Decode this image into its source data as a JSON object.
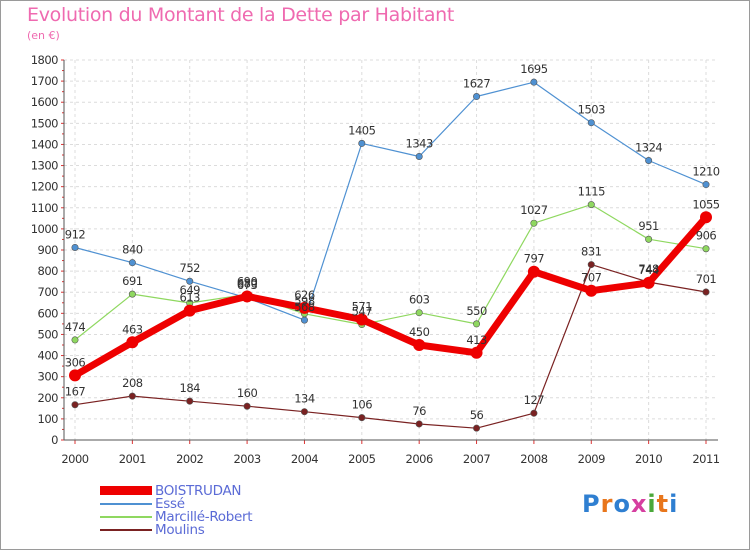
{
  "title": "Evolution du Montant de la Dette par Habitant",
  "unit": "(en €)",
  "logo": {
    "text": "Proxiti",
    "letter_colors": [
      "#2f7fd1",
      "#e8761c",
      "#2f7fd1",
      "#d63fa0",
      "#4aa83a",
      "#e8761c",
      "#2f7fd1"
    ]
  },
  "chart_data": {
    "type": "line",
    "x": [
      "2000",
      "2001",
      "2002",
      "2003",
      "2004",
      "2005",
      "2006",
      "2007",
      "2008",
      "2009",
      "2010",
      "2011"
    ],
    "ylim": [
      0,
      1800
    ],
    "yticks": [
      "0",
      "100",
      "200",
      "300",
      "400",
      "500",
      "600",
      "700",
      "800",
      "900",
      "1000",
      "1100",
      "1200",
      "1300",
      "1400",
      "1500",
      "1600",
      "1700",
      "1800"
    ],
    "grid": true,
    "legend_position": "bottom-left",
    "series": [
      {
        "name": "BOISTRUDAN",
        "color": "#ee0000",
        "values": [
          306,
          463,
          613,
          680,
          626,
          571,
          450,
          413,
          797,
          707,
          744,
          1055
        ],
        "labels": [
          "306",
          "463",
          "613",
          "680",
          "626",
          "571",
          "450",
          "413",
          "797",
          "707",
          "744",
          "1055"
        ]
      },
      {
        "name": "Essé",
        "color": "#4f91d2",
        "values": [
          912,
          840,
          752,
          673,
          568,
          1405,
          1343,
          1627,
          1695,
          1503,
          1324,
          1210
        ],
        "labels": [
          "912",
          "840",
          "752",
          "673",
          "568",
          "1405",
          "1343",
          "1627",
          "1695",
          "1503",
          "1324",
          "1210"
        ]
      },
      {
        "name": "Marcillé-Robert",
        "color": "#8fd860",
        "values": [
          474,
          691,
          649,
          690,
          598,
          547,
          603,
          550,
          1027,
          1115,
          951,
          906
        ],
        "labels": [
          "474",
          "691",
          "649",
          "690",
          "598",
          "547",
          "603",
          "550",
          "1027",
          "1115",
          "951",
          "906"
        ]
      },
      {
        "name": "Moulins",
        "color": "#7a2222",
        "values": [
          167,
          208,
          184,
          160,
          134,
          106,
          76,
          56,
          127,
          831,
          748,
          701
        ],
        "labels": [
          "167",
          "208",
          "184",
          "160",
          "134",
          "106",
          "76",
          "56",
          "127",
          "831",
          "748",
          "701"
        ]
      }
    ]
  }
}
